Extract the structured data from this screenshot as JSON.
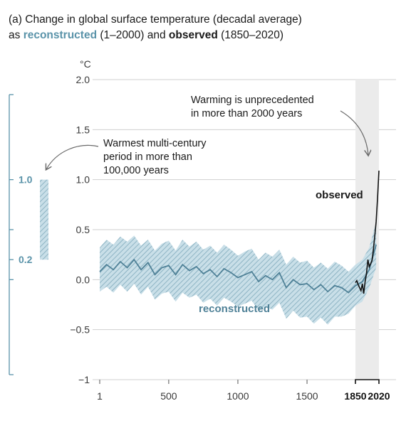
{
  "title": {
    "line1": "(a) Change in global surface temperature (decadal average)",
    "line2_prefix": "as ",
    "line2_reconstructed": "reconstructed",
    "line2_mid": " (1–2000) and ",
    "line2_observed": "observed",
    "line2_suffix": " (1850–2020)"
  },
  "chart_data": {
    "type": "line",
    "ylabel": "°C",
    "ylim": [
      -1.0,
      2.0
    ],
    "yticks": [
      2.0,
      1.5,
      1.0,
      0.5,
      0.0,
      -0.5,
      -1
    ],
    "ytick_labels": [
      "2.0",
      "1.5",
      "1.0",
      "0.5",
      "0.0",
      "−0.5",
      "−1"
    ],
    "xticks_main": [
      "1",
      "500",
      "1000",
      "1500"
    ],
    "xticks_bold": [
      "1850",
      "2020"
    ],
    "grid": true,
    "shaded_period": [
      1850,
      2020
    ],
    "series": [
      {
        "name": "reconstructed",
        "color": "#4f8197",
        "band_color": "#a9c9d6",
        "x": [
          1,
          50,
          100,
          150,
          200,
          250,
          300,
          350,
          400,
          450,
          500,
          550,
          600,
          650,
          700,
          750,
          800,
          850,
          900,
          950,
          1000,
          1050,
          1100,
          1150,
          1200,
          1250,
          1300,
          1350,
          1400,
          1450,
          1500,
          1550,
          1600,
          1650,
          1700,
          1750,
          1800,
          1850,
          1900,
          1950,
          2000
        ],
        "values": [
          0.08,
          0.15,
          0.1,
          0.18,
          0.12,
          0.2,
          0.1,
          0.17,
          0.05,
          0.12,
          0.14,
          0.05,
          0.15,
          0.09,
          0.13,
          0.06,
          0.1,
          0.03,
          0.11,
          0.07,
          0.02,
          0.05,
          0.08,
          -0.02,
          0.04,
          0.0,
          0.07,
          -0.08,
          0.0,
          -0.05,
          -0.04,
          -0.1,
          -0.05,
          -0.12,
          -0.06,
          -0.08,
          -0.13,
          -0.06,
          -0.02,
          0.1,
          0.35
        ],
        "band_low": [
          -0.12,
          -0.07,
          -0.13,
          -0.05,
          -0.12,
          -0.04,
          -0.15,
          -0.07,
          -0.2,
          -0.14,
          -0.12,
          -0.22,
          -0.13,
          -0.18,
          -0.15,
          -0.23,
          -0.19,
          -0.26,
          -0.18,
          -0.22,
          -0.27,
          -0.24,
          -0.21,
          -0.31,
          -0.27,
          -0.3,
          -0.23,
          -0.39,
          -0.31,
          -0.38,
          -0.37,
          -0.44,
          -0.38,
          -0.45,
          -0.37,
          -0.37,
          -0.34,
          -0.26,
          -0.22,
          -0.08,
          0.12
        ],
        "band_high": [
          0.32,
          0.4,
          0.35,
          0.43,
          0.38,
          0.44,
          0.34,
          0.4,
          0.29,
          0.36,
          0.39,
          0.29,
          0.4,
          0.33,
          0.38,
          0.3,
          0.34,
          0.27,
          0.35,
          0.3,
          0.24,
          0.28,
          0.31,
          0.2,
          0.27,
          0.23,
          0.3,
          0.15,
          0.23,
          0.17,
          0.19,
          0.12,
          0.17,
          0.11,
          0.18,
          0.14,
          0.08,
          0.15,
          0.2,
          0.32,
          0.58
        ]
      },
      {
        "name": "observed",
        "color": "#111111",
        "x": [
          1850,
          1860,
          1870,
          1880,
          1890,
          1900,
          1910,
          1920,
          1930,
          1940,
          1950,
          1960,
          1970,
          1980,
          1990,
          2000,
          2010,
          2020
        ],
        "values": [
          -0.03,
          -0.01,
          -0.05,
          -0.08,
          -0.11,
          -0.04,
          -0.14,
          -0.02,
          0.06,
          0.2,
          0.13,
          0.16,
          0.19,
          0.3,
          0.44,
          0.58,
          0.82,
          1.09
        ]
      }
    ],
    "range_bar": {
      "low": 0.2,
      "high": 1.0,
      "low_label": "0.2",
      "high_label": "1.0",
      "color": "#a9c9d6"
    },
    "annotations": {
      "warming_line1": "Warming is unprecedented",
      "warming_line2": "in more than 2000 years",
      "warmest_line1": "Warmest multi-century",
      "warmest_line2": "period in more than",
      "warmest_line3": "100,000 years",
      "observed_label": "observed",
      "reconstructed_label": "reconstructed"
    }
  }
}
